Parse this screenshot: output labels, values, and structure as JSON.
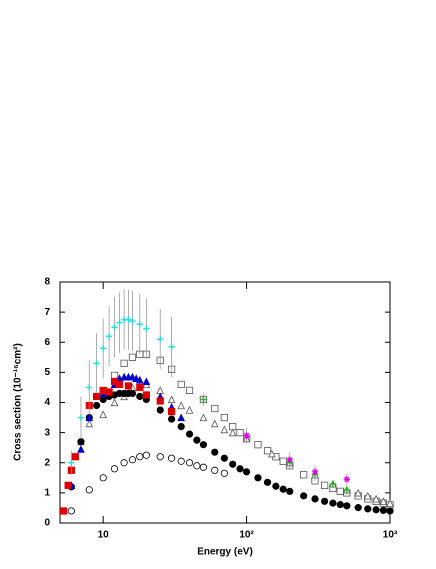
{
  "chart_data": {
    "type": "scatter",
    "xlabel": "Energy (eV)",
    "ylabel": "Cross section (10⁻¹⁶cm²)",
    "xscale": "log",
    "xlim": [
      5,
      1000
    ],
    "ylim": [
      0,
      8
    ],
    "xticks": [
      {
        "value": 10,
        "label": "10"
      },
      {
        "value": 100,
        "label": "10²"
      },
      {
        "value": 1000,
        "label": "10³"
      }
    ],
    "yticks": [
      0,
      1,
      2,
      3,
      4,
      5,
      6,
      7,
      8
    ],
    "series": [
      {
        "marker": "circle-open",
        "color": "#000000",
        "x": [
          6,
          8,
          10,
          12,
          14,
          16,
          18,
          20,
          25,
          30,
          35,
          40,
          45,
          50,
          60,
          70
        ],
        "values": [
          0.4,
          1.1,
          1.5,
          1.8,
          2.0,
          2.1,
          2.2,
          2.25,
          2.2,
          2.15,
          2.05,
          2.0,
          1.9,
          1.85,
          1.75,
          1.65
        ]
      },
      {
        "marker": "square-open",
        "color": "#555555",
        "x": [
          12,
          14,
          16,
          18,
          20,
          25,
          30,
          35,
          40,
          50,
          60,
          70,
          80,
          90,
          100,
          120,
          140,
          160,
          180,
          200,
          250,
          300,
          350,
          400,
          450,
          500,
          600,
          700,
          800,
          900,
          1000
        ],
        "values": [
          4.9,
          5.3,
          5.5,
          5.6,
          5.6,
          5.4,
          5.1,
          4.6,
          4.4,
          4.1,
          3.8,
          3.5,
          3.2,
          3.0,
          2.8,
          2.6,
          2.4,
          2.2,
          2.05,
          1.9,
          1.6,
          1.4,
          1.25,
          1.15,
          1.05,
          1.0,
          0.9,
          0.8,
          0.72,
          0.66,
          0.6
        ]
      },
      {
        "marker": "triangle-open",
        "color": "#555555",
        "x": [
          7,
          8,
          10,
          12,
          14,
          16,
          20,
          25,
          30,
          35,
          40,
          50,
          60,
          70,
          80,
          100,
          150,
          200,
          300,
          400,
          500,
          600,
          700,
          800,
          900,
          1000
        ],
        "values": [
          2.7,
          3.3,
          3.6,
          4.0,
          4.2,
          4.5,
          4.6,
          4.4,
          4.1,
          3.9,
          3.75,
          3.5,
          3.3,
          3.1,
          3.0,
          2.8,
          2.3,
          2.0,
          1.6,
          1.3,
          1.1,
          1.0,
          0.9,
          0.8,
          0.72,
          0.65
        ]
      },
      {
        "marker": "circle-filled",
        "color": "#000000",
        "x": [
          6,
          7,
          8,
          9,
          10,
          11,
          12,
          13,
          14,
          15,
          16,
          18,
          20,
          25,
          30,
          35,
          40,
          45,
          50,
          60,
          70,
          80,
          90,
          100,
          120,
          140,
          160,
          180,
          200,
          250,
          300,
          350,
          400,
          450,
          500,
          600,
          700,
          800,
          900,
          1000
        ],
        "values": [
          1.2,
          2.7,
          3.5,
          3.9,
          4.1,
          4.2,
          4.25,
          4.3,
          4.3,
          4.3,
          4.3,
          4.2,
          4.1,
          3.75,
          3.45,
          3.2,
          2.95,
          2.75,
          2.6,
          2.35,
          2.15,
          1.95,
          1.8,
          1.7,
          1.5,
          1.35,
          1.22,
          1.12,
          1.05,
          0.9,
          0.8,
          0.72,
          0.66,
          0.61,
          0.57,
          0.51,
          0.47,
          0.44,
          0.42,
          0.4
        ]
      },
      {
        "marker": "triangle-filled",
        "color": "#0000cc",
        "x": [
          6,
          7,
          8,
          10,
          12,
          13,
          14,
          15,
          16,
          17,
          18,
          20,
          25,
          30,
          35
        ],
        "values": [
          1.25,
          2.45,
          3.5,
          4.3,
          4.6,
          4.8,
          4.85,
          4.85,
          4.85,
          4.8,
          4.75,
          4.7,
          4.2,
          3.85,
          3.5
        ]
      },
      {
        "marker": "square-filled",
        "color": "#dd0000",
        "x": [
          5.3,
          5.7,
          6,
          6.4,
          8,
          9,
          10,
          11,
          12,
          13,
          15,
          18,
          20,
          25,
          30
        ],
        "values": [
          0.4,
          1.25,
          1.75,
          2.2,
          3.9,
          4.2,
          4.4,
          4.35,
          4.7,
          4.6,
          4.55,
          4.5,
          4.25,
          4.05,
          3.7
        ]
      },
      {
        "marker": "cross",
        "color": "#33dddd",
        "x": [
          6,
          7,
          8,
          9,
          10,
          11,
          12,
          13,
          14,
          15,
          16,
          18,
          20,
          25,
          30
        ],
        "values": [
          2.0,
          3.5,
          4.5,
          5.3,
          5.8,
          6.2,
          6.5,
          6.65,
          6.75,
          6.75,
          6.7,
          6.6,
          6.45,
          6.1,
          5.85
        ],
        "errors": [
          0.4,
          0.7,
          0.9,
          1.0,
          1.0,
          1.0,
          1.0,
          1.0,
          1.0,
          1.0,
          1.0,
          1.0,
          1.0,
          1.0,
          1.0
        ]
      },
      {
        "marker": "cross",
        "color": "#22bb22",
        "x": [
          50,
          100,
          200,
          300,
          400,
          500
        ],
        "values": [
          4.1,
          2.9,
          2.0,
          1.6,
          1.3,
          1.1
        ],
        "errors": [
          0.2,
          0.25,
          0.2,
          0.2,
          0.1,
          0.1
        ]
      },
      {
        "marker": "star",
        "color": "#dd00dd",
        "x": [
          100,
          200,
          300,
          500
        ],
        "values": [
          2.9,
          2.1,
          1.7,
          1.45
        ],
        "errors": [
          0.2,
          0.25,
          0.2,
          0.2
        ]
      }
    ]
  }
}
